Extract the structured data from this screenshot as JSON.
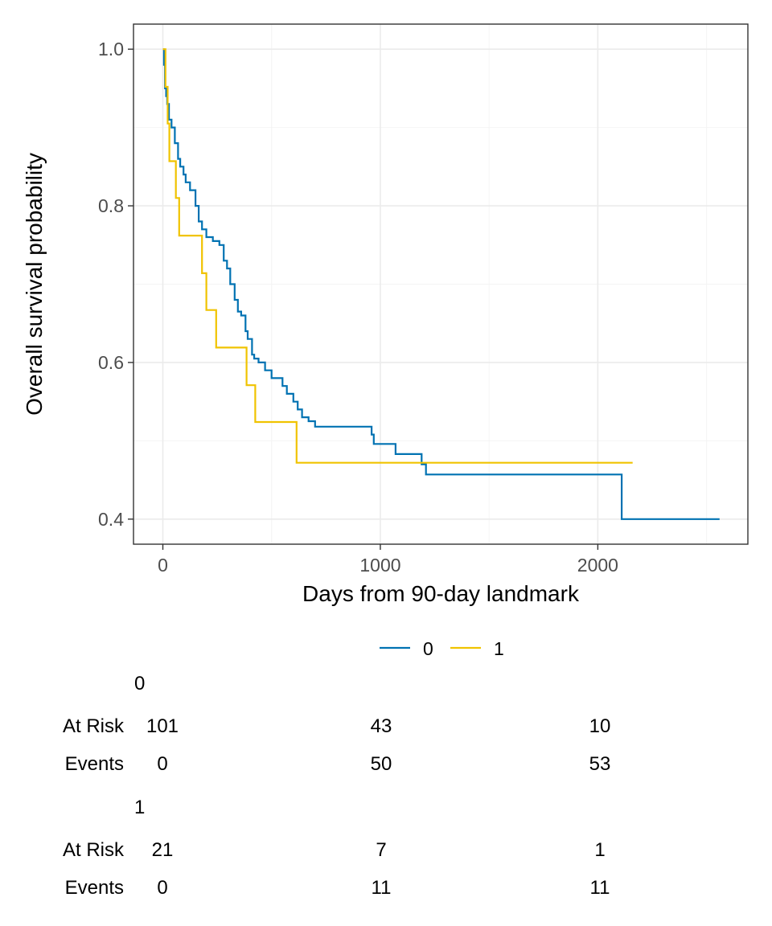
{
  "chart_data": {
    "type": "line",
    "subtype": "kaplan-meier-step",
    "xlabel": "Days from 90-day landmark",
    "ylabel": "Overall survival probability",
    "xlim": [
      -135,
      2690
    ],
    "ylim": [
      0.368,
      1.032
    ],
    "x_ticks": [
      0,
      1000,
      2000
    ],
    "x_tick_labels": [
      "0",
      "1000",
      "2000"
    ],
    "x_minor_ticks": [
      500,
      1500,
      2500
    ],
    "y_ticks": [
      0.4,
      0.6,
      0.8,
      1.0
    ],
    "y_tick_labels": [
      "0.4",
      "0.6",
      "0.8",
      "1.0"
    ],
    "y_minor_ticks": [
      0.5,
      0.7,
      0.9
    ],
    "grid": true,
    "legend_position": "bottom",
    "series": [
      {
        "name": "0",
        "color": "#0072B2",
        "x": [
          0,
          5,
          10,
          15,
          20,
          28,
          40,
          55,
          70,
          80,
          95,
          105,
          125,
          150,
          165,
          180,
          200,
          230,
          260,
          280,
          295,
          310,
          330,
          345,
          360,
          380,
          390,
          410,
          420,
          440,
          470,
          500,
          550,
          570,
          600,
          620,
          640,
          670,
          700,
          960,
          970,
          1070,
          1190,
          1210,
          2110,
          2560
        ],
        "y": [
          1.0,
          0.98,
          0.95,
          0.94,
          0.93,
          0.91,
          0.9,
          0.88,
          0.86,
          0.85,
          0.84,
          0.83,
          0.82,
          0.8,
          0.78,
          0.77,
          0.76,
          0.755,
          0.75,
          0.73,
          0.72,
          0.7,
          0.68,
          0.665,
          0.66,
          0.64,
          0.63,
          0.61,
          0.605,
          0.6,
          0.59,
          0.58,
          0.57,
          0.56,
          0.55,
          0.54,
          0.53,
          0.525,
          0.518,
          0.508,
          0.496,
          0.483,
          0.47,
          0.457,
          0.4,
          0.4
        ]
      },
      {
        "name": "1",
        "color": "#F0C300",
        "x": [
          0,
          12,
          22,
          30,
          60,
          75,
          180,
          200,
          245,
          385,
          425,
          615,
          2160
        ],
        "y": [
          1.0,
          0.952,
          0.905,
          0.857,
          0.81,
          0.762,
          0.714,
          0.667,
          0.619,
          0.571,
          0.524,
          0.472,
          0.472
        ]
      }
    ]
  },
  "risk_table": {
    "columns_x": [
      0,
      1000,
      2000
    ],
    "groups": [
      {
        "title": "0",
        "rows": [
          {
            "label": "At Risk",
            "values": [
              "101",
              "43",
              "10"
            ]
          },
          {
            "label": "Events",
            "values": [
              "0",
              "50",
              "53"
            ]
          }
        ]
      },
      {
        "title": "1",
        "rows": [
          {
            "label": "At Risk",
            "values": [
              "21",
              "7",
              "1"
            ]
          },
          {
            "label": "Events",
            "values": [
              "0",
              "11",
              "11"
            ]
          }
        ]
      }
    ]
  }
}
